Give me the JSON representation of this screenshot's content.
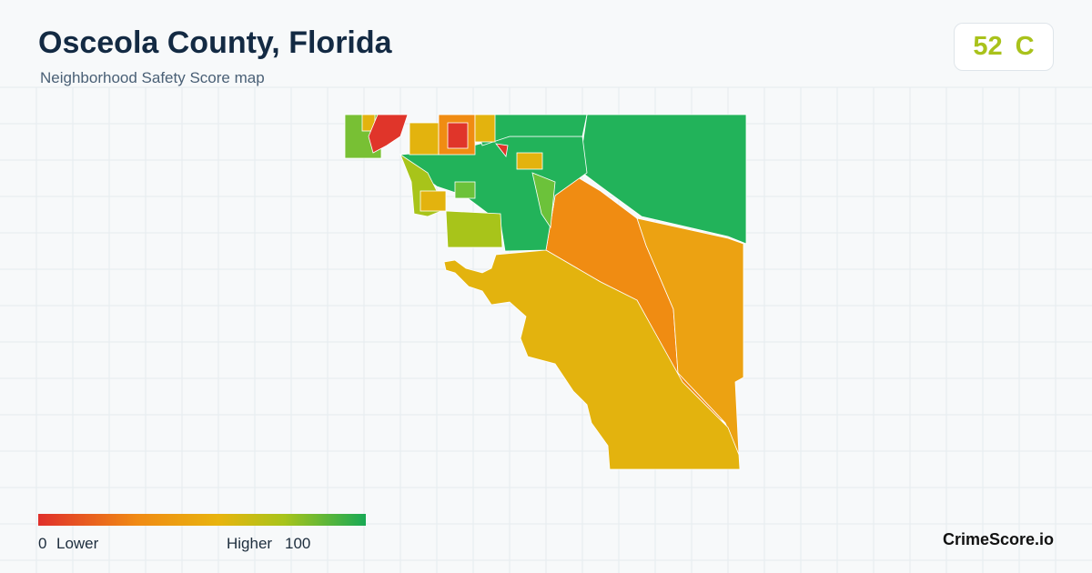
{
  "header": {
    "title": "Osceola County, Florida",
    "subtitle": "Neighborhood Safety Score map"
  },
  "score": {
    "value": 52,
    "grade": "C"
  },
  "legend": {
    "min": 0,
    "min_label": "Lower",
    "max_label": "Higher",
    "max": 100
  },
  "brand": "CrimeScore.io"
}
